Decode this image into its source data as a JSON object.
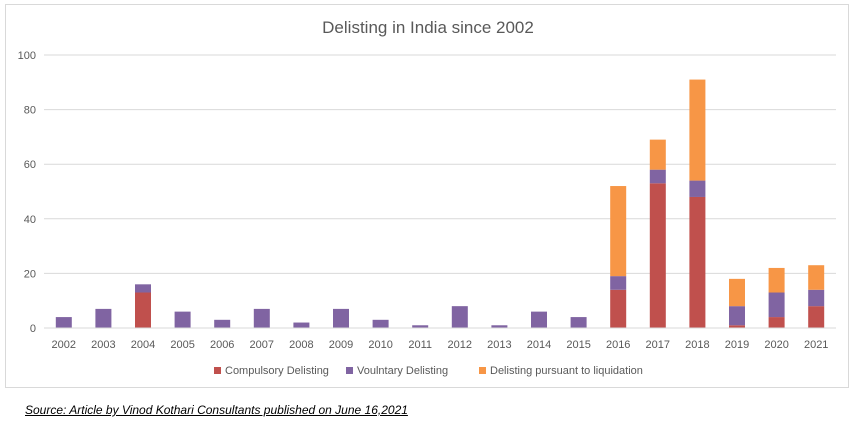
{
  "chart_data": {
    "type": "bar",
    "stacked": true,
    "title": "Delisting in India since 2002",
    "xlabel": "",
    "ylabel": "",
    "ylim": [
      0,
      100
    ],
    "yticks": [
      0,
      20,
      40,
      60,
      80,
      100
    ],
    "grid": "horizontal",
    "legend_position": "bottom",
    "categories": [
      "2002",
      "2003",
      "2004",
      "2005",
      "2006",
      "2007",
      "2008",
      "2009",
      "2010",
      "2011",
      "2012",
      "2013",
      "2014",
      "2015",
      "2016",
      "2017",
      "2018",
      "2019",
      "2020",
      "2021"
    ],
    "series": [
      {
        "name": "Compulsory Delisting",
        "color": "#c0504d",
        "values": [
          0,
          0,
          13,
          0,
          0,
          0,
          0,
          0,
          0,
          0,
          0,
          0,
          0,
          0,
          14,
          53,
          48,
          1,
          4,
          8
        ]
      },
      {
        "name": "Voulntary  Delisting",
        "color": "#8064a2",
        "values": [
          4,
          7,
          3,
          6,
          3,
          7,
          2,
          7,
          3,
          1,
          8,
          1,
          6,
          4,
          5,
          5,
          6,
          7,
          9,
          6
        ]
      },
      {
        "name": "Delisting pursuant to liquidation",
        "color": "#f79646",
        "values": [
          0,
          0,
          0,
          0,
          0,
          0,
          0,
          0,
          0,
          0,
          0,
          0,
          0,
          0,
          33,
          11,
          37,
          10,
          9,
          9
        ]
      }
    ]
  },
  "source_note": "Source: Article by Vinod Kothari Consultants published on June 16,2021"
}
